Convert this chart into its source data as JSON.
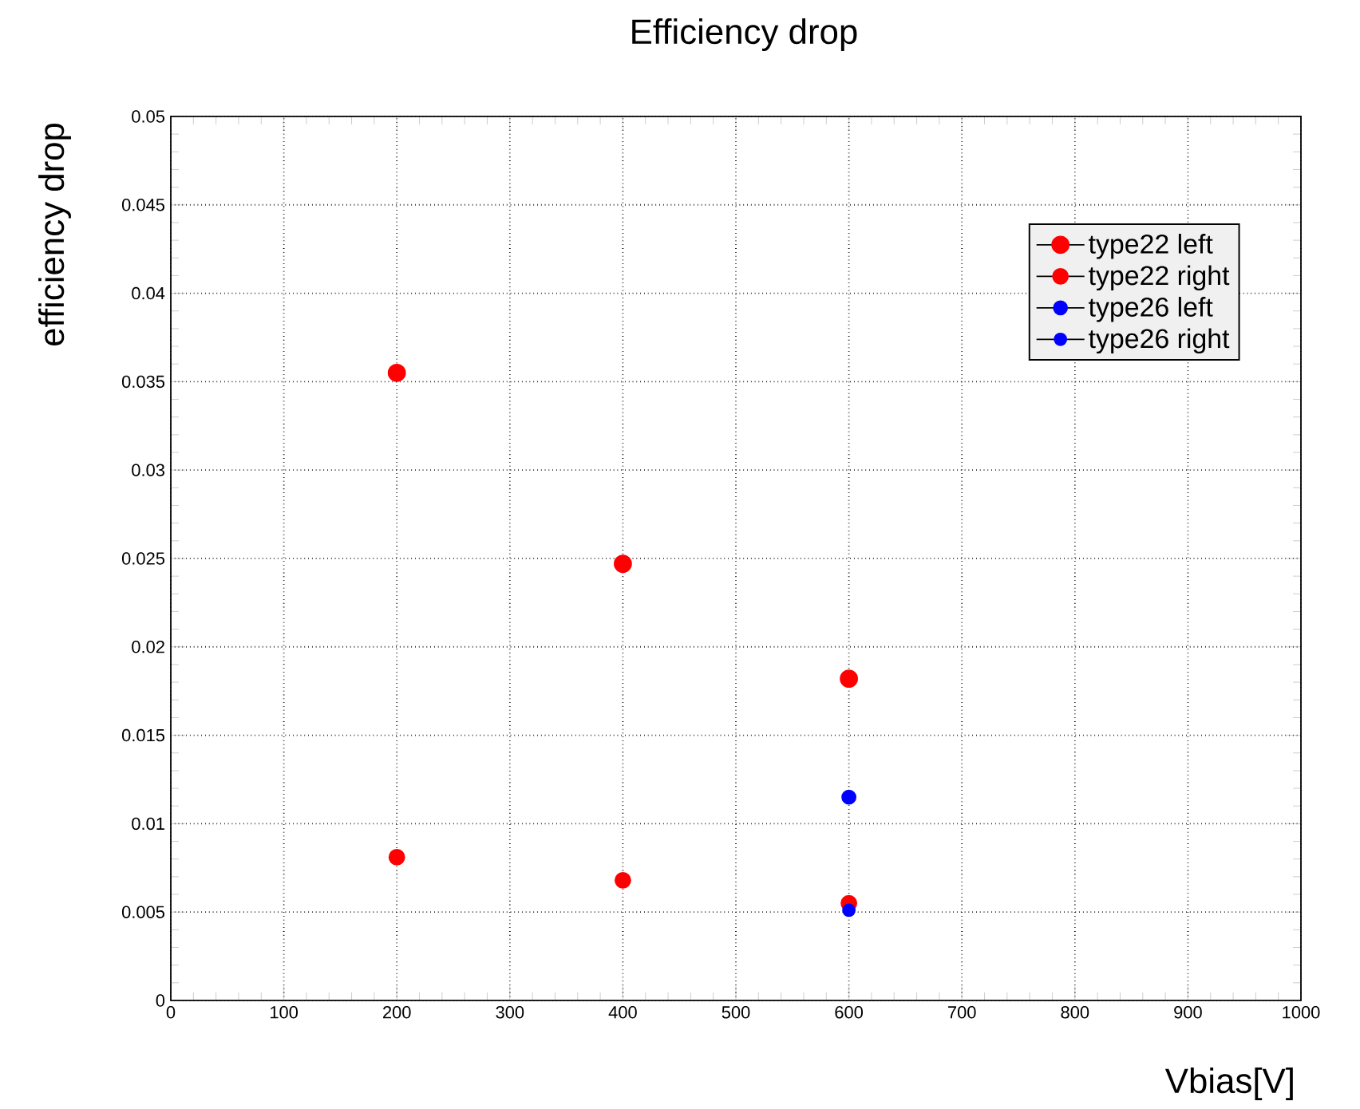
{
  "chart_data": {
    "type": "scatter",
    "title": "Efficiency drop",
    "xlabel": "Vbias[V]",
    "ylabel": "efficiency drop",
    "x": [
      200,
      400,
      600
    ],
    "series": [
      {
        "name": "type22 left",
        "color": "#ff0000",
        "values": [
          0.0355,
          0.0247,
          0.0182
        ]
      },
      {
        "name": "type22 right",
        "color": "#ff0000",
        "values": [
          0.0081,
          0.0068,
          0.0055
        ]
      },
      {
        "name": "type26 left",
        "color": "#0000ff",
        "x": [
          600
        ],
        "values": [
          0.0115
        ]
      },
      {
        "name": "type26 right",
        "color": "#0000ff",
        "x": [
          600
        ],
        "values": [
          0.0051
        ]
      }
    ],
    "xlim": [
      0,
      1000
    ],
    "xticks": [
      0,
      100,
      200,
      300,
      400,
      500,
      600,
      700,
      800,
      900,
      1000
    ],
    "ylim": [
      0,
      0.05
    ],
    "yticks": [
      0,
      0.005,
      0.01,
      0.015,
      0.02,
      0.025,
      0.03,
      0.035,
      0.04,
      0.045,
      0.05
    ],
    "grid": true,
    "legend": "top right",
    "marker": "circle"
  }
}
